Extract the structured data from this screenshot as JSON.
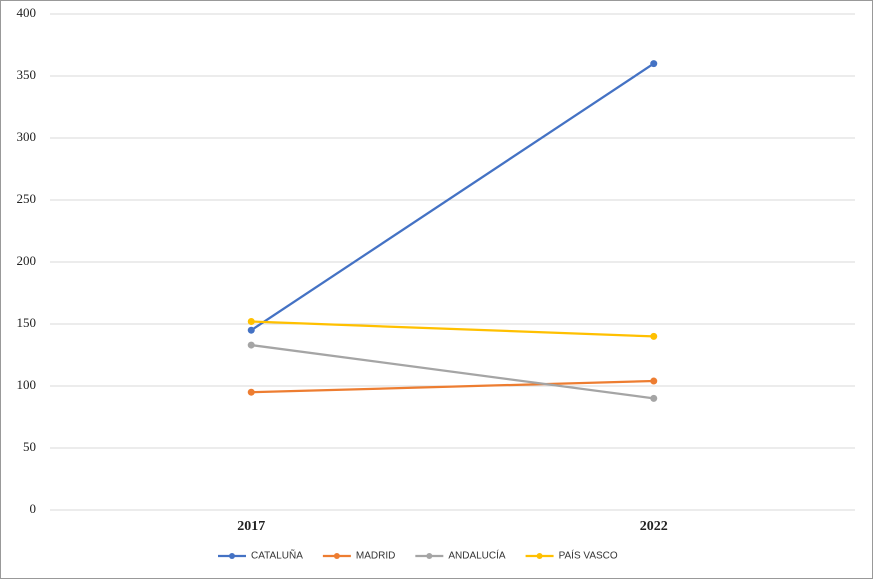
{
  "chart_data": {
    "type": "line",
    "categories": [
      "2017",
      "2022"
    ],
    "series": [
      {
        "name": "CATALUÑA",
        "color": "#4472c4",
        "values": [
          145,
          360
        ]
      },
      {
        "name": "MADRID",
        "color": "#ed7d31",
        "values": [
          95,
          104
        ]
      },
      {
        "name": "ANDALUCÍA",
        "color": "#a5a5a5",
        "values": [
          133,
          90
        ]
      },
      {
        "name": "PAÍS VASCO",
        "color": "#ffc000",
        "values": [
          152,
          140
        ]
      }
    ],
    "ylim": [
      0,
      400
    ],
    "yticks": [
      0,
      50,
      100,
      150,
      200,
      250,
      300,
      350,
      400
    ],
    "grid": true,
    "legend": "bottom"
  }
}
